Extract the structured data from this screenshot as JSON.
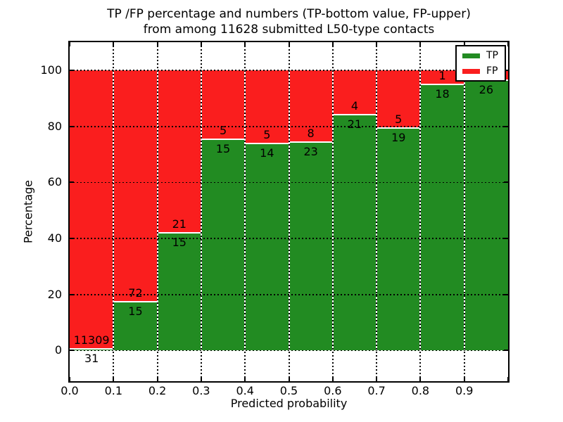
{
  "figure": {
    "title_line1": "TP /FP percentage and numbers (TP-bottom value, FP-upper)",
    "title_line2": "from among 11628 submitted L50-type contacts",
    "xlabel": "Predicted probability",
    "ylabel": "Percentage"
  },
  "legend": {
    "tp_label": "TP",
    "fp_label": "FP"
  },
  "chart_data": {
    "type": "bar",
    "stacked": true,
    "title": "TP /FP percentage and numbers (TP-bottom value, FP-upper) from among 11628 submitted L50-type contacts",
    "xlabel": "Predicted probability",
    "ylabel": "Percentage",
    "x_tick_labels": [
      "0.0",
      "0.1",
      "0.2",
      "0.3",
      "0.4",
      "0.5",
      "0.6",
      "0.7",
      "0.8",
      "0.9"
    ],
    "y_ticks": [
      0,
      20,
      40,
      60,
      80,
      100
    ],
    "xlim": [
      0.0,
      1.0
    ],
    "ylim": [
      -11,
      110
    ],
    "grid": true,
    "legend_position": "upper right",
    "colors": {
      "tp": "#228b22",
      "fp": "#fa1e1e",
      "bar_edge": "#ffffff",
      "grid": "#000000"
    },
    "series_note": "each 0.1-wide bin stacks TP (green, bottom) and FP (red, top) to 100%",
    "bins": [
      {
        "x_range": [
          0.0,
          0.1
        ],
        "tp_count": 31,
        "fp_count": 11309,
        "tp_percent": 0.27,
        "fp_percent": 99.73
      },
      {
        "x_range": [
          0.1,
          0.2
        ],
        "tp_count": 15,
        "fp_count": 72,
        "tp_percent": 17.24,
        "fp_percent": 82.76
      },
      {
        "x_range": [
          0.2,
          0.3
        ],
        "tp_count": 15,
        "fp_count": 21,
        "tp_percent": 41.67,
        "fp_percent": 58.33
      },
      {
        "x_range": [
          0.3,
          0.4
        ],
        "tp_count": 15,
        "fp_count": 5,
        "tp_percent": 75.0,
        "fp_percent": 25.0
      },
      {
        "x_range": [
          0.4,
          0.5
        ],
        "tp_count": 14,
        "fp_count": 5,
        "tp_percent": 73.68,
        "fp_percent": 26.32
      },
      {
        "x_range": [
          0.5,
          0.6
        ],
        "tp_count": 23,
        "fp_count": 8,
        "tp_percent": 74.19,
        "fp_percent": 25.81
      },
      {
        "x_range": [
          0.6,
          0.7
        ],
        "tp_count": 21,
        "fp_count": 4,
        "tp_percent": 84.0,
        "fp_percent": 16.0
      },
      {
        "x_range": [
          0.7,
          0.8
        ],
        "tp_count": 19,
        "fp_count": 5,
        "tp_percent": 79.17,
        "fp_percent": 20.83
      },
      {
        "x_range": [
          0.8,
          0.9
        ],
        "tp_count": 18,
        "fp_count": 1,
        "tp_percent": 94.74,
        "fp_percent": 5.26
      },
      {
        "x_range": [
          0.9,
          1.0
        ],
        "tp_count": 26,
        "fp_count": null,
        "tp_percent": 96.3,
        "fp_percent": 3.7
      }
    ]
  }
}
